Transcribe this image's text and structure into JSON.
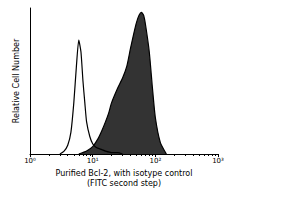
{
  "chart_data": {
    "type": "line",
    "xlabel": "Purified Bcl-2, with isotype control\n(FITC second step)",
    "ylabel": "Relative Cell Number",
    "log": "x",
    "xlim": [
      1,
      1000
    ],
    "xticks": [
      {
        "value": 1,
        "label": "10⁰"
      },
      {
        "value": 10,
        "label": "10¹"
      },
      {
        "value": 100,
        "label": "10²"
      },
      {
        "value": 1000,
        "label": "10³"
      }
    ],
    "ylim": [
      0,
      100
    ],
    "tick_labels": "x",
    "grid": false,
    "series": [
      {
        "type": "line",
        "color": "#000000",
        "x": [
          3,
          3.5,
          4,
          4.5,
          5,
          5.5,
          6,
          6.5,
          7,
          7.5,
          8,
          9,
          10,
          11,
          12,
          14,
          16,
          20,
          25,
          30
        ],
        "values": [
          0,
          2,
          6,
          15,
          35,
          60,
          78,
          70,
          50,
          35,
          22,
          12,
          7,
          5,
          4,
          3,
          2,
          1,
          1,
          0
        ]
      },
      {
        "type": "area",
        "color": "#333333",
        "x": [
          6,
          8,
          10,
          12,
          14,
          16,
          18,
          20,
          25,
          30,
          35,
          40,
          45,
          50,
          55,
          60,
          65,
          70,
          80,
          90,
          100,
          120,
          150
        ],
        "values": [
          0,
          2,
          5,
          10,
          16,
          22,
          28,
          35,
          45,
          52,
          60,
          72,
          82,
          90,
          95,
          97,
          95,
          88,
          70,
          45,
          25,
          8,
          0
        ]
      }
    ]
  }
}
